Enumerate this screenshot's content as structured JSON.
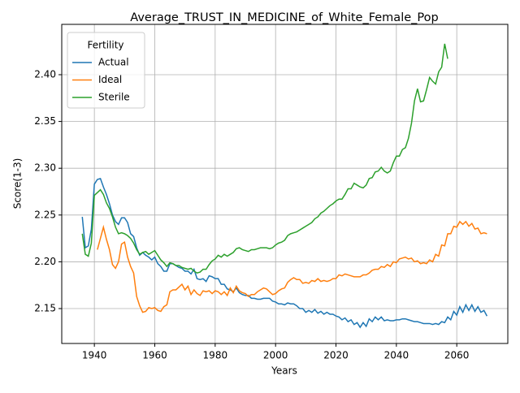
{
  "chart_data": {
    "type": "line",
    "title": "Average_TRUST_IN_MEDICINE_of_White_Female_Pop",
    "xlabel": "Years",
    "ylabel": "Score(1-3)",
    "x": [
      1936,
      1937,
      1938,
      1939,
      1940,
      1941,
      1942,
      1943,
      1944,
      1945,
      1946,
      1947,
      1948,
      1949,
      1950,
      1951,
      1952,
      1953,
      1954,
      1955,
      1956,
      1957,
      1958,
      1959,
      1960,
      1961,
      1962,
      1963,
      1964,
      1965,
      1966,
      1967,
      1968,
      1969,
      1970,
      1971,
      1972,
      1973,
      1974,
      1975,
      1976,
      1977,
      1978,
      1979,
      1980,
      1981,
      1982,
      1983,
      1984,
      1985,
      1986,
      1987,
      1988,
      1989,
      1990,
      1991,
      1992,
      1993,
      1994,
      1995,
      1996,
      1997,
      1998,
      1999,
      2000,
      2001,
      2002,
      2003,
      2004,
      2005,
      2006,
      2007,
      2008,
      2009,
      2010,
      2011,
      2012,
      2013,
      2014,
      2015,
      2016,
      2017,
      2018,
      2019,
      2020,
      2021,
      2022,
      2023,
      2024,
      2025,
      2026,
      2027,
      2028,
      2029,
      2030,
      2031,
      2032,
      2033,
      2034,
      2035,
      2036,
      2037,
      2038,
      2039,
      2040,
      2041,
      2042,
      2043,
      2044,
      2045,
      2046,
      2047,
      2048,
      2049,
      2050,
      2051,
      2052,
      2053,
      2054,
      2055,
      2056,
      2057,
      2058,
      2059,
      2060,
      2061,
      2062,
      2063,
      2064,
      2065,
      2066,
      2067,
      2068,
      2069,
      2070
    ],
    "series": [
      {
        "name": "Actual",
        "color": "#1f77b4",
        "values": [
          2.248,
          2.215,
          2.217,
          2.235,
          2.283,
          2.288,
          2.289,
          2.28,
          2.272,
          2.262,
          2.25,
          2.243,
          2.24,
          2.247,
          2.247,
          2.242,
          2.23,
          2.227,
          2.215,
          2.207,
          2.21,
          2.207,
          2.205,
          2.202,
          2.205,
          2.198,
          2.195,
          2.19,
          2.19,
          2.198,
          2.198,
          2.196,
          2.194,
          2.193,
          2.19,
          2.19,
          2.187,
          2.192,
          2.182,
          2.181,
          2.182,
          2.179,
          2.185,
          2.184,
          2.182,
          2.182,
          2.176,
          2.176,
          2.171,
          2.17,
          2.168,
          2.172,
          2.167,
          2.165,
          2.164,
          2.164,
          2.161,
          2.161,
          2.16,
          2.16,
          2.161,
          2.161,
          2.161,
          2.158,
          2.157,
          2.155,
          2.155,
          2.154,
          2.156,
          2.155,
          2.155,
          2.153,
          2.15,
          2.15,
          2.146,
          2.148,
          2.146,
          2.149,
          2.145,
          2.147,
          2.144,
          2.146,
          2.144,
          2.144,
          2.142,
          2.141,
          2.138,
          2.14,
          2.136,
          2.138,
          2.133,
          2.135,
          2.13,
          2.135,
          2.131,
          2.139,
          2.136,
          2.141,
          2.138,
          2.141,
          2.137,
          2.138,
          2.137,
          2.137,
          2.138,
          2.138,
          2.139,
          2.139,
          2.138,
          2.137,
          2.136,
          2.136,
          2.135,
          2.134,
          2.134,
          2.134,
          2.133,
          2.134,
          2.133,
          2.136,
          2.135,
          2.141,
          2.138,
          2.147,
          2.143,
          2.152,
          2.146,
          2.154,
          2.148,
          2.154,
          2.147,
          2.152,
          2.146,
          2.148,
          2.142
        ]
      },
      {
        "name": "Ideal",
        "color": "#ff7f0e",
        "values": [
          null,
          null,
          null,
          null,
          null,
          2.213,
          2.225,
          2.237,
          2.224,
          2.213,
          2.197,
          2.193,
          2.2,
          2.219,
          2.221,
          2.205,
          2.195,
          2.188,
          2.163,
          2.153,
          2.146,
          2.147,
          2.151,
          2.15,
          2.151,
          2.148,
          2.147,
          2.152,
          2.154,
          2.168,
          2.17,
          2.17,
          2.173,
          2.176,
          2.17,
          2.174,
          2.165,
          2.17,
          2.166,
          2.164,
          2.169,
          2.168,
          2.169,
          2.166,
          2.169,
          2.168,
          2.165,
          2.168,
          2.164,
          2.172,
          2.167,
          2.174,
          2.169,
          2.167,
          2.166,
          2.163,
          2.165,
          2.165,
          2.168,
          2.17,
          2.172,
          2.171,
          2.168,
          2.165,
          2.166,
          2.169,
          2.171,
          2.172,
          2.178,
          2.181,
          2.183,
          2.181,
          2.181,
          2.177,
          2.178,
          2.177,
          2.18,
          2.179,
          2.182,
          2.179,
          2.18,
          2.179,
          2.18,
          2.182,
          2.182,
          2.186,
          2.185,
          2.187,
          2.186,
          2.185,
          2.184,
          2.184,
          2.184,
          2.186,
          2.186,
          2.188,
          2.191,
          2.192,
          2.192,
          2.195,
          2.194,
          2.197,
          2.195,
          2.2,
          2.199,
          2.203,
          2.204,
          2.205,
          2.203,
          2.204,
          2.2,
          2.201,
          2.198,
          2.199,
          2.198,
          2.202,
          2.2,
          2.208,
          2.206,
          2.218,
          2.217,
          2.23,
          2.23,
          2.238,
          2.237,
          2.243,
          2.24,
          2.243,
          2.238,
          2.241,
          2.235,
          2.236,
          2.23,
          2.231,
          2.23
        ]
      },
      {
        "name": "Sterile",
        "color": "#2ca02c",
        "values": [
          2.23,
          2.208,
          2.206,
          2.22,
          2.271,
          2.274,
          2.277,
          2.272,
          2.263,
          2.257,
          2.248,
          2.237,
          2.23,
          2.231,
          2.23,
          2.228,
          2.225,
          2.22,
          2.213,
          2.208,
          2.21,
          2.211,
          2.208,
          2.21,
          2.212,
          2.207,
          2.202,
          2.199,
          2.195,
          2.199,
          2.198,
          2.196,
          2.196,
          2.194,
          2.193,
          2.192,
          2.193,
          2.19,
          2.188,
          2.189,
          2.192,
          2.192,
          2.197,
          2.201,
          2.203,
          2.207,
          2.205,
          2.208,
          2.206,
          2.208,
          2.21,
          2.214,
          2.215,
          2.213,
          2.212,
          2.211,
          2.213,
          2.213,
          2.214,
          2.215,
          2.215,
          2.215,
          2.214,
          2.215,
          2.218,
          2.22,
          2.221,
          2.223,
          2.228,
          2.23,
          2.231,
          2.232,
          2.234,
          2.236,
          2.238,
          2.24,
          2.242,
          2.246,
          2.248,
          2.252,
          2.254,
          2.257,
          2.26,
          2.262,
          2.265,
          2.267,
          2.267,
          2.272,
          2.278,
          2.278,
          2.284,
          2.282,
          2.28,
          2.279,
          2.282,
          2.289,
          2.29,
          2.296,
          2.297,
          2.301,
          2.297,
          2.295,
          2.297,
          2.306,
          2.313,
          2.313,
          2.32,
          2.322,
          2.332,
          2.348,
          2.372,
          2.385,
          2.371,
          2.372,
          2.384,
          2.397,
          2.393,
          2.39,
          2.403,
          2.408,
          2.433,
          2.417,
          null,
          null,
          null,
          null,
          null,
          null,
          null,
          null,
          null,
          null,
          null,
          null,
          null
        ]
      }
    ],
    "legend_title": "Fertility",
    "legend": "upper left",
    "grid": true,
    "xlim": [
      1929.2,
      2076.9
    ],
    "xticks": [
      1940,
      1960,
      1980,
      2000,
      2020,
      2040,
      2060
    ],
    "ylim": [
      2.1127,
      2.4538
    ],
    "yticks": [
      2.15,
      {
        "value": 2.2,
        "label": "2.20"
      },
      2.25,
      {
        "value": 2.3,
        "label": "2.30"
      },
      2.35,
      {
        "value": 2.4,
        "label": "2.40"
      }
    ]
  }
}
